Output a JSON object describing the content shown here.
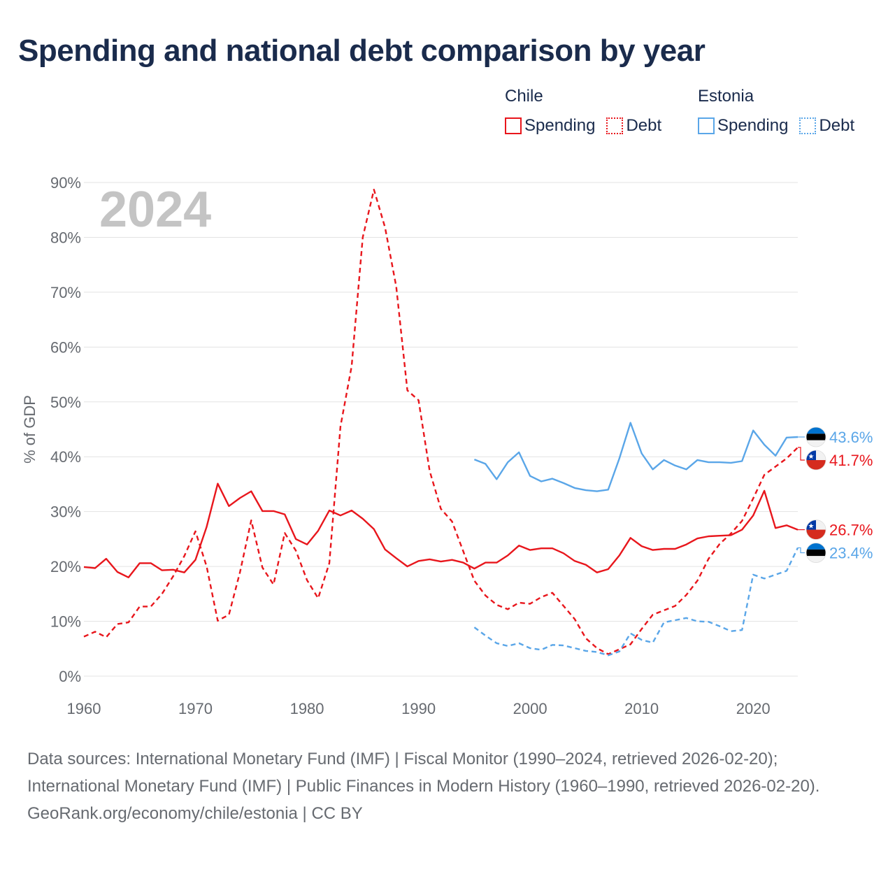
{
  "title": "Spending and national debt comparison by year",
  "legend": {
    "groups": [
      {
        "country": "Chile",
        "items": [
          {
            "label": "Spending",
            "color": "#e8161c",
            "style": "solid"
          },
          {
            "label": "Debt",
            "color": "#e8161c",
            "style": "dotted"
          }
        ]
      },
      {
        "country": "Estonia",
        "items": [
          {
            "label": "Spending",
            "color": "#5aa6e8",
            "style": "solid"
          },
          {
            "label": "Debt",
            "color": "#5aa6e8",
            "style": "dotted"
          }
        ]
      }
    ]
  },
  "chart_data": {
    "type": "line",
    "year_label": "2024",
    "ylabel": "% of GDP",
    "xlim": [
      1960,
      2024
    ],
    "ylim": [
      0,
      90
    ],
    "xticks": [
      1960,
      1970,
      1980,
      1990,
      2000,
      2010,
      2020
    ],
    "xtick_labels": [
      "1960",
      "1970",
      "1980",
      "1990",
      "2000",
      "2010",
      "2020"
    ],
    "yticks": [
      0,
      10,
      20,
      30,
      40,
      50,
      60,
      70,
      80,
      90
    ],
    "ytick_labels": [
      "0%",
      "10%",
      "20%",
      "30%",
      "40%",
      "50%",
      "60%",
      "70%",
      "80%",
      "90%"
    ],
    "grid": true,
    "series": [
      {
        "name": "Chile Spending",
        "country": "Chile",
        "metric": "Spending",
        "color": "#e8161c",
        "dash": "solid",
        "start_year": 1960,
        "values": [
          19.9,
          19.7,
          21.4,
          19.0,
          18.0,
          20.6,
          20.6,
          19.3,
          19.4,
          18.9,
          21.2,
          27.2,
          35.1,
          31.0,
          32.5,
          33.7,
          30.1,
          30.1,
          29.5,
          25.0,
          24.0,
          26.5,
          30.2,
          29.3,
          30.2,
          28.7,
          26.8,
          23.1,
          21.5,
          20.0,
          21.0,
          21.3,
          20.9,
          21.2,
          20.7,
          19.6,
          20.7,
          20.7,
          22.0,
          23.8,
          23.0,
          23.3,
          23.3,
          22.4,
          21.0,
          20.3,
          18.9,
          19.5,
          22.0,
          25.2,
          23.7,
          23.0,
          23.2,
          23.2,
          24.0,
          25.1,
          25.5,
          25.6,
          25.7,
          26.7,
          29.3,
          33.8,
          27.0,
          27.5,
          26.7
        ],
        "end_label": "26.7%",
        "flag": "chile"
      },
      {
        "name": "Chile Debt",
        "country": "Chile",
        "metric": "Debt",
        "color": "#e8161c",
        "dash": "dashed",
        "start_year": 1960,
        "values": [
          7.2,
          8.1,
          7.1,
          9.5,
          9.8,
          12.7,
          12.7,
          15.0,
          18.2,
          21.9,
          26.4,
          20.0,
          10.1,
          11.2,
          19.0,
          28.4,
          19.8,
          16.7,
          26.1,
          22.9,
          17.5,
          14.2,
          20.6,
          45.5,
          56.5,
          80.0,
          88.7,
          81.8,
          71.0,
          52.1,
          50.3,
          37.4,
          30.5,
          28.2,
          22.8,
          17.4,
          14.7,
          13.0,
          12.2,
          13.4,
          13.2,
          14.4,
          15.2,
          12.8,
          10.4,
          6.9,
          5.1,
          4.0,
          4.9,
          5.8,
          8.6,
          11.2,
          12.0,
          12.8,
          14.8,
          17.4,
          21.4,
          24.1,
          26.0,
          28.3,
          32.4,
          36.7,
          38.2,
          39.7,
          41.7
        ],
        "end_label": "41.7%",
        "flag": "chile"
      },
      {
        "name": "Estonia Spending",
        "country": "Estonia",
        "metric": "Spending",
        "color": "#5aa6e8",
        "dash": "solid",
        "start_year": 1995,
        "values": [
          39.5,
          38.7,
          35.9,
          39.0,
          40.8,
          36.5,
          35.5,
          36.0,
          35.2,
          34.3,
          33.9,
          33.7,
          34.0,
          39.7,
          46.2,
          40.6,
          37.7,
          39.4,
          38.4,
          37.7,
          39.4,
          39.0,
          39.0,
          38.9,
          39.2,
          44.8,
          42.2,
          40.2,
          43.5,
          43.6
        ],
        "end_label": "43.6%",
        "flag": "estonia"
      },
      {
        "name": "Estonia Debt",
        "country": "Estonia",
        "metric": "Debt",
        "color": "#5aa6e8",
        "dash": "dashed",
        "start_year": 1995,
        "values": [
          8.9,
          7.4,
          6.0,
          5.5,
          6.0,
          5.1,
          4.8,
          5.7,
          5.6,
          5.1,
          4.6,
          4.4,
          3.8,
          4.5,
          7.8,
          6.6,
          6.1,
          9.8,
          10.2,
          10.6,
          10.0,
          9.9,
          9.1,
          8.2,
          8.4,
          18.5,
          17.8,
          18.5,
          19.2,
          23.4
        ],
        "end_label": "23.4%",
        "flag": "estonia"
      }
    ]
  },
  "footer": {
    "sources": "Data sources: International Monetary Fund (IMF) | Fiscal Monitor (1990–2024, retrieved 2026-02-20); International Monetary Fund (IMF) | Public Finances in Modern History (1960–1990, retrieved 2026-02-20).",
    "credit": "GeoRank.org/economy/chile/estonia | CC BY"
  }
}
